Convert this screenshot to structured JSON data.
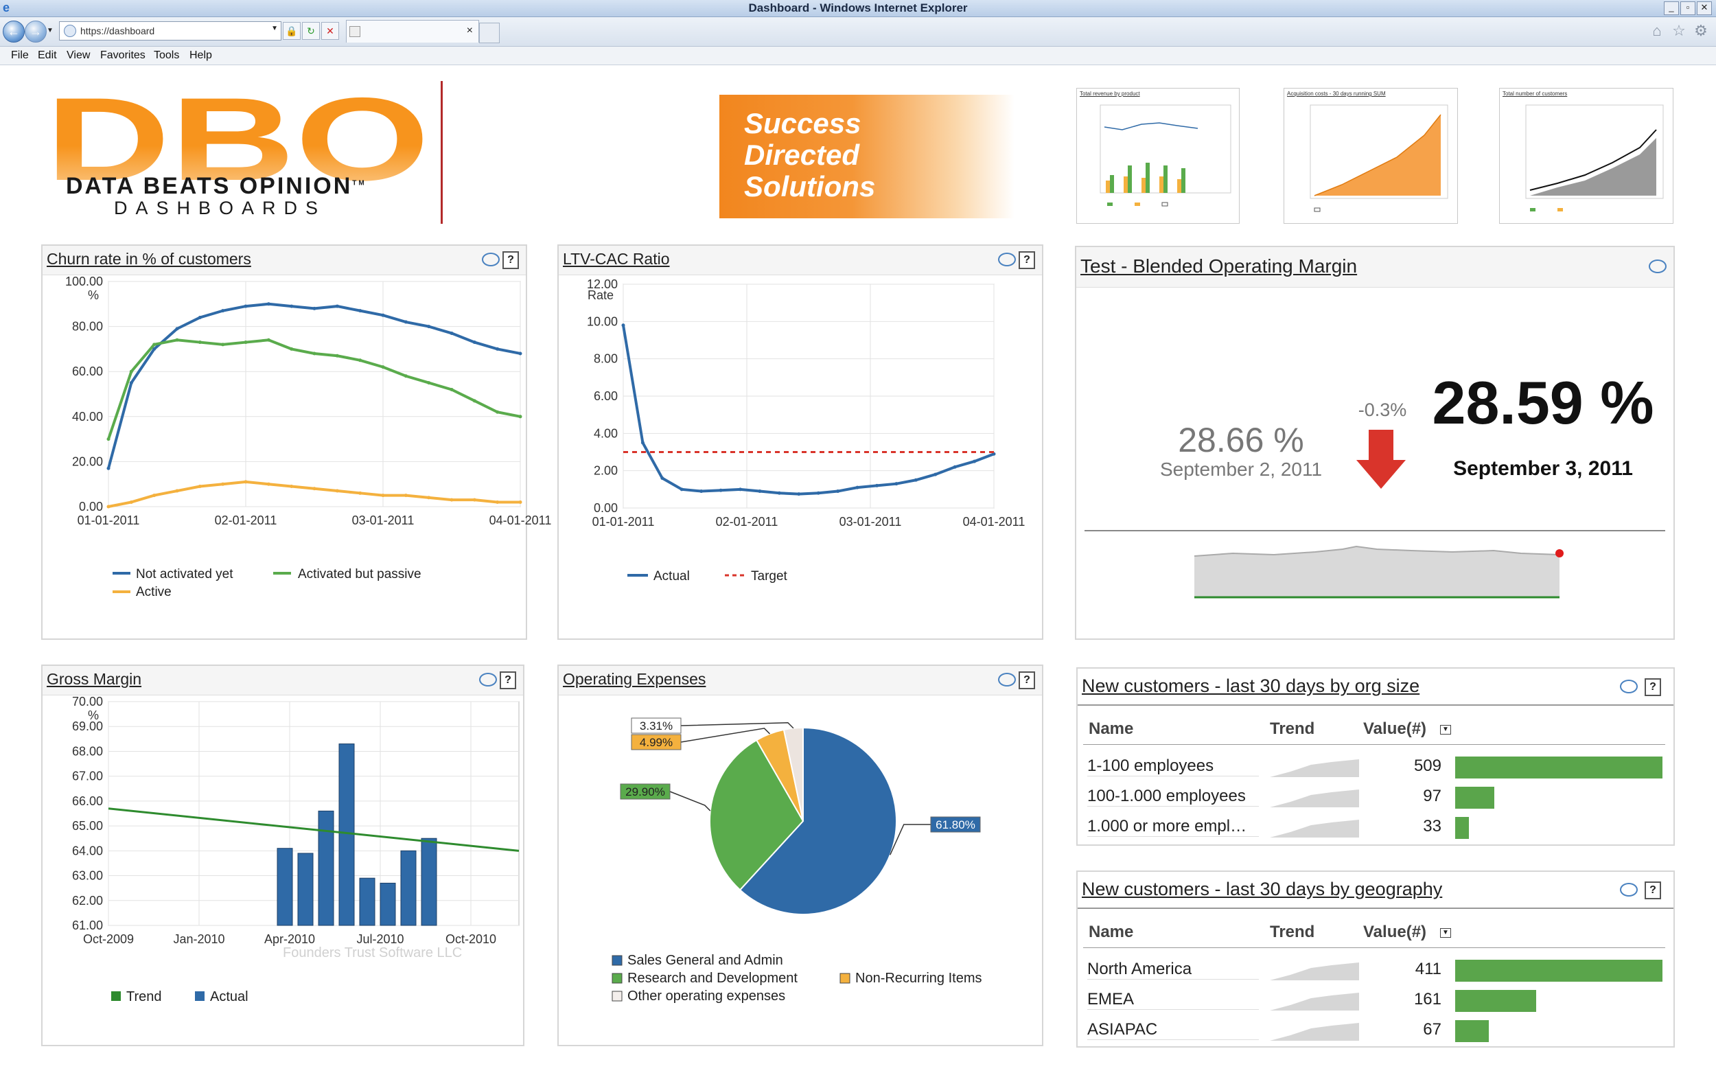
{
  "window": {
    "title": "Dashboard - Windows Internet Explorer"
  },
  "browser": {
    "address": "https://dashboard",
    "menu": [
      "File",
      "Edit",
      "View",
      "Favorites",
      "Tools",
      "Help"
    ]
  },
  "header": {
    "logo_letters": "DBO",
    "logo_line1": "DATA BEATS OPINION",
    "logo_tm": "TM",
    "logo_line2": "DASHBOARDS",
    "slogan": [
      "Success",
      "Directed",
      "Solutions"
    ],
    "thumbnails": [
      {
        "title": "Total revenue by product"
      },
      {
        "title": "Acquisition costs - 30 days running SUM"
      },
      {
        "title": "Total number of customers"
      }
    ]
  },
  "churn": {
    "title": "Churn rate in % of customers",
    "chart_data": {
      "type": "line",
      "ylabel": "%",
      "ylim": [
        0,
        100
      ],
      "yticks": [
        "100.00",
        "80.00",
        "60.00",
        "40.00",
        "20.00",
        "0.00"
      ],
      "xticks": [
        "01-01-2011",
        "02-01-2011",
        "03-01-2011",
        "04-01-2011"
      ],
      "series": [
        {
          "name": "Not activated yet",
          "color": "#2f6aa7",
          "values": [
            17,
            55,
            70,
            79,
            84,
            87,
            89,
            90,
            89,
            88,
            89,
            87,
            85,
            82,
            80,
            77,
            73,
            70,
            68
          ]
        },
        {
          "name": "Activated but passive",
          "color": "#5aab4c",
          "values": [
            30,
            60,
            72,
            74,
            73,
            72,
            73,
            74,
            70,
            68,
            67,
            65,
            62,
            58,
            55,
            52,
            47,
            42,
            40
          ]
        },
        {
          "name": "Active",
          "color": "#f4b13e",
          "values": [
            0,
            2,
            5,
            7,
            9,
            10,
            11,
            10,
            9,
            8,
            7,
            6,
            5,
            5,
            4,
            3,
            3,
            2,
            2
          ]
        }
      ]
    },
    "legend": [
      "Not activated yet",
      "Activated but passive",
      "Active"
    ]
  },
  "ltv": {
    "title": "LTV-CAC Ratio",
    "chart_data": {
      "type": "line",
      "ylabel": "Rate",
      "ylim": [
        0,
        12
      ],
      "yticks": [
        "12.00",
        "10.00",
        "8.00",
        "6.00",
        "4.00",
        "2.00",
        "0.00"
      ],
      "xticks": [
        "01-01-2011",
        "02-01-2011",
        "03-01-2011",
        "04-01-2011"
      ],
      "series": [
        {
          "name": "Actual",
          "color": "#2f6aa7",
          "values": [
            9.8,
            3.5,
            1.6,
            1.0,
            0.9,
            0.95,
            1.0,
            0.9,
            0.8,
            0.75,
            0.8,
            0.9,
            1.1,
            1.2,
            1.3,
            1.5,
            1.8,
            2.2,
            2.5,
            2.9
          ]
        },
        {
          "name": "Target",
          "color": "#d9342b",
          "values": [
            3,
            3,
            3,
            3,
            3,
            3,
            3,
            3,
            3,
            3,
            3,
            3,
            3,
            3,
            3,
            3,
            3,
            3,
            3,
            3
          ]
        }
      ]
    },
    "legend": [
      "Actual",
      "Target"
    ]
  },
  "margin": {
    "title": "Test - Blended Operating Margin",
    "prev_value": "28.66 %",
    "prev_date": "September 2, 2011",
    "delta": "-0.3%",
    "current_value": "28.59 %",
    "current_date": "September 3, 2011",
    "arrow_color": "#d9342b"
  },
  "gross": {
    "title": "Gross Margin",
    "chart_data": {
      "type": "bar",
      "ylabel": "%",
      "ylim": [
        61,
        70
      ],
      "yticks": [
        "70.00",
        "69.00",
        "68.00",
        "67.00",
        "66.00",
        "65.00",
        "64.00",
        "63.00",
        "62.00",
        "61.00"
      ],
      "xticks": [
        "Oct-2009",
        "Jan-2010",
        "Apr-2010",
        "Jul-2010",
        "Oct-2010"
      ],
      "series": [
        {
          "name": "Actual",
          "color": "#2f6aa7",
          "values": [
            64.1,
            63.9,
            65.6,
            68.3,
            62.9,
            62.7,
            64.0,
            64.5
          ]
        },
        {
          "name": "Trend",
          "color": "#2e8b2e",
          "line": [
            65.7,
            64.0
          ]
        }
      ],
      "watermark": "Founders Trust Software LLC"
    },
    "legend": [
      "Trend",
      "Actual"
    ]
  },
  "opex": {
    "title": "Operating Expenses",
    "chart_data": {
      "type": "pie",
      "slices": [
        {
          "name": "Sales General and Admin",
          "value": 61.8,
          "label": "61.80%",
          "color": "#2f6aa7"
        },
        {
          "name": "Research and Development",
          "value": 29.9,
          "label": "29.90%",
          "color": "#5aab4c"
        },
        {
          "name": "Non-Recurring Items",
          "value": 4.99,
          "label": "4.99%",
          "color": "#f4b13e"
        },
        {
          "name": "Other operating expenses",
          "value": 3.31,
          "label": "3.31%",
          "color": "#ece4df"
        }
      ]
    },
    "legend": [
      "Sales General and Admin",
      "Research and Development",
      "Non-Recurring Items",
      "Other operating expenses"
    ]
  },
  "orgsize": {
    "title": "New customers - last 30 days by org size",
    "columns": [
      "Name",
      "Trend",
      "Value(#)"
    ],
    "rows": [
      {
        "name": "1-100 employees",
        "value": "509",
        "fraction": 1.0
      },
      {
        "name": "100-1.000 employees",
        "value": "97",
        "fraction": 0.19
      },
      {
        "name": "1.000 or more empl…",
        "value": "33",
        "fraction": 0.065
      }
    ]
  },
  "geo": {
    "title": "New customers - last 30 days by geography",
    "columns": [
      "Name",
      "Trend",
      "Value(#)"
    ],
    "rows": [
      {
        "name": "North America",
        "value": "411",
        "fraction": 1.0
      },
      {
        "name": "EMEA",
        "value": "161",
        "fraction": 0.39
      },
      {
        "name": "ASIAPAC",
        "value": "67",
        "fraction": 0.163
      }
    ]
  }
}
